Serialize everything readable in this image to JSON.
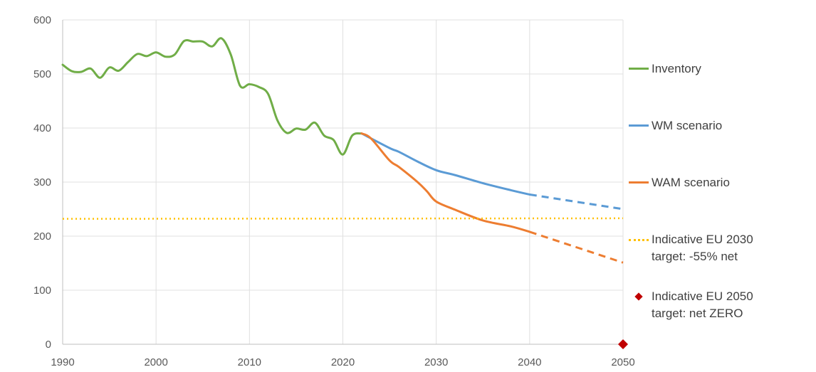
{
  "chart_data": {
    "type": "line",
    "title": "",
    "xlabel": "",
    "ylabel": "",
    "xlim": [
      1990,
      2050
    ],
    "ylim": [
      0,
      600
    ],
    "x_ticks": [
      1990,
      2000,
      2010,
      2020,
      2030,
      2040,
      2050
    ],
    "y_ticks": [
      0,
      100,
      200,
      300,
      400,
      500,
      600
    ],
    "grid": "horizontal and vertical",
    "legend_position": "right",
    "series": [
      {
        "name": "Inventory",
        "color": "#70AD47",
        "style": "solid",
        "points": [
          [
            1990,
            517
          ],
          [
            1991,
            505
          ],
          [
            1992,
            504
          ],
          [
            1993,
            510
          ],
          [
            1994,
            493
          ],
          [
            1995,
            512
          ],
          [
            1996,
            506
          ],
          [
            1997,
            522
          ],
          [
            1998,
            537
          ],
          [
            1999,
            533
          ],
          [
            2000,
            540
          ],
          [
            2001,
            532
          ],
          [
            2002,
            536
          ],
          [
            2003,
            561
          ],
          [
            2004,
            560
          ],
          [
            2005,
            560
          ],
          [
            2006,
            551
          ],
          [
            2007,
            566
          ],
          [
            2008,
            536
          ],
          [
            2009,
            478
          ],
          [
            2010,
            481
          ],
          [
            2011,
            476
          ],
          [
            2012,
            463
          ],
          [
            2013,
            414
          ],
          [
            2014,
            391
          ],
          [
            2015,
            399
          ],
          [
            2016,
            397
          ],
          [
            2017,
            410
          ],
          [
            2018,
            386
          ],
          [
            2019,
            378
          ],
          [
            2020,
            351
          ],
          [
            2021,
            386
          ],
          [
            2022,
            390
          ]
        ]
      },
      {
        "name": "WM scenario",
        "color": "#5B9BD5",
        "style": "solid",
        "points": [
          [
            2022,
            390
          ],
          [
            2025,
            363
          ],
          [
            2026,
            356
          ],
          [
            2028,
            338
          ],
          [
            2030,
            322
          ],
          [
            2032,
            313
          ],
          [
            2035,
            298
          ],
          [
            2038,
            285
          ],
          [
            2040,
            277
          ]
        ],
        "projection": {
          "style": "dashed",
          "points": [
            [
              2040,
              277
            ],
            [
              2050,
              250
            ]
          ]
        }
      },
      {
        "name": "WAM scenario",
        "color": "#ED7D31",
        "style": "solid",
        "points": [
          [
            2022,
            390
          ],
          [
            2023,
            381
          ],
          [
            2025,
            340
          ],
          [
            2026,
            328
          ],
          [
            2028,
            300
          ],
          [
            2029,
            283
          ],
          [
            2030,
            264
          ],
          [
            2032,
            249
          ],
          [
            2035,
            229
          ],
          [
            2038,
            218
          ],
          [
            2040,
            208
          ]
        ],
        "projection": {
          "style": "dashed",
          "points": [
            [
              2040,
              208
            ],
            [
              2050,
              151
            ]
          ]
        }
      },
      {
        "name": "Indicative EU 2030\ntarget: -55% net",
        "color": "#FFC000",
        "style": "dotted",
        "points": [
          [
            1990,
            232
          ],
          [
            2050,
            233
          ]
        ]
      },
      {
        "name": "Indicative EU 2050\ntarget:  net ZERO",
        "color": "#C00000",
        "style": "marker-diamond",
        "points": [
          [
            2050,
            0
          ]
        ]
      }
    ]
  }
}
